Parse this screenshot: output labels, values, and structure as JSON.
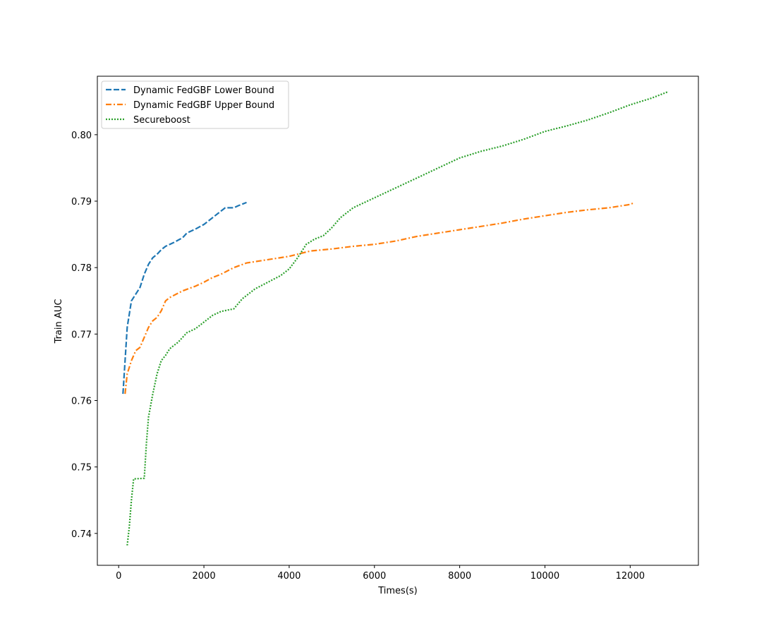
{
  "chart_data": {
    "type": "line",
    "xlabel": "Times(s)",
    "ylabel": "Train AUC",
    "xlim": [
      -500,
      13600
    ],
    "ylim": [
      0.7352,
      0.8088
    ],
    "xticks": [
      0,
      2000,
      4000,
      6000,
      8000,
      10000,
      12000
    ],
    "xtick_labels": [
      "0",
      "2000",
      "4000",
      "6000",
      "8000",
      "10000",
      "12000"
    ],
    "yticks": [
      0.74,
      0.75,
      0.76,
      0.77,
      0.78,
      0.79,
      0.8
    ],
    "ytick_labels": [
      "0.74",
      "0.75",
      "0.76",
      "0.77",
      "0.78",
      "0.79",
      "0.80"
    ],
    "grid": false,
    "legend_position": "top-left",
    "series": [
      {
        "name": "Dynamic FedGBF Lower Bound",
        "color": "#1f77b4",
        "style": "dashed",
        "x": [
          100,
          130,
          160,
          200,
          250,
          300,
          400,
          500,
          600,
          700,
          800,
          900,
          1000,
          1100,
          1200,
          1300,
          1500,
          1600,
          1800,
          2000,
          2200,
          2400,
          2500,
          2700,
          2800,
          3000
        ],
        "y": [
          0.761,
          0.764,
          0.767,
          0.771,
          0.773,
          0.775,
          0.776,
          0.777,
          0.779,
          0.7805,
          0.7815,
          0.782,
          0.7827,
          0.7832,
          0.7835,
          0.7838,
          0.7845,
          0.7852,
          0.7858,
          0.7865,
          0.7875,
          0.7885,
          0.789,
          0.789,
          0.7893,
          0.7898
        ]
      },
      {
        "name": "Dynamic FedGBF Upper Bound",
        "color": "#ff7f0e",
        "style": "dashdot",
        "x": [
          150,
          200,
          300,
          400,
          500,
          600,
          700,
          800,
          900,
          1000,
          1100,
          1200,
          1500,
          1800,
          2000,
          2200,
          2400,
          2700,
          3000,
          3500,
          4000,
          4500,
          5000,
          5500,
          6000,
          6500,
          7000,
          7500,
          8000,
          8500,
          9000,
          9500,
          10000,
          10500,
          11000,
          11500,
          12000,
          12100
        ],
        "y": [
          0.761,
          0.764,
          0.766,
          0.7675,
          0.768,
          0.7695,
          0.771,
          0.772,
          0.7725,
          0.7735,
          0.775,
          0.7755,
          0.7765,
          0.7772,
          0.7778,
          0.7785,
          0.779,
          0.78,
          0.7807,
          0.7812,
          0.7817,
          0.7825,
          0.7828,
          0.7832,
          0.7835,
          0.784,
          0.7847,
          0.7852,
          0.7857,
          0.7862,
          0.7867,
          0.7873,
          0.7878,
          0.7883,
          0.7887,
          0.789,
          0.7895,
          0.7898
        ]
      },
      {
        "name": "Secureboost",
        "color": "#2ca02c",
        "style": "dotted",
        "x": [
          200,
          250,
          300,
          350,
          600,
          650,
          700,
          800,
          900,
          1000,
          1100,
          1200,
          1400,
          1600,
          1800,
          2000,
          2200,
          2400,
          2700,
          2900,
          3200,
          3500,
          3800,
          4000,
          4200,
          4400,
          4600,
          4800,
          5000,
          5200,
          5500,
          6000,
          6500,
          7000,
          7500,
          8000,
          8500,
          9000,
          9500,
          10000,
          10500,
          11000,
          11500,
          12000,
          12500,
          12900
        ],
        "y": [
          0.7382,
          0.741,
          0.745,
          0.7482,
          0.7483,
          0.7535,
          0.7575,
          0.761,
          0.764,
          0.766,
          0.7668,
          0.7678,
          0.7688,
          0.7702,
          0.7708,
          0.7718,
          0.7728,
          0.7734,
          0.7738,
          0.7753,
          0.7768,
          0.7778,
          0.7788,
          0.7798,
          0.7815,
          0.7835,
          0.7843,
          0.7848,
          0.786,
          0.7875,
          0.789,
          0.7905,
          0.792,
          0.7935,
          0.795,
          0.7965,
          0.7975,
          0.7983,
          0.7993,
          0.8005,
          0.8013,
          0.8022,
          0.8033,
          0.8045,
          0.8055,
          0.8065
        ]
      }
    ]
  }
}
